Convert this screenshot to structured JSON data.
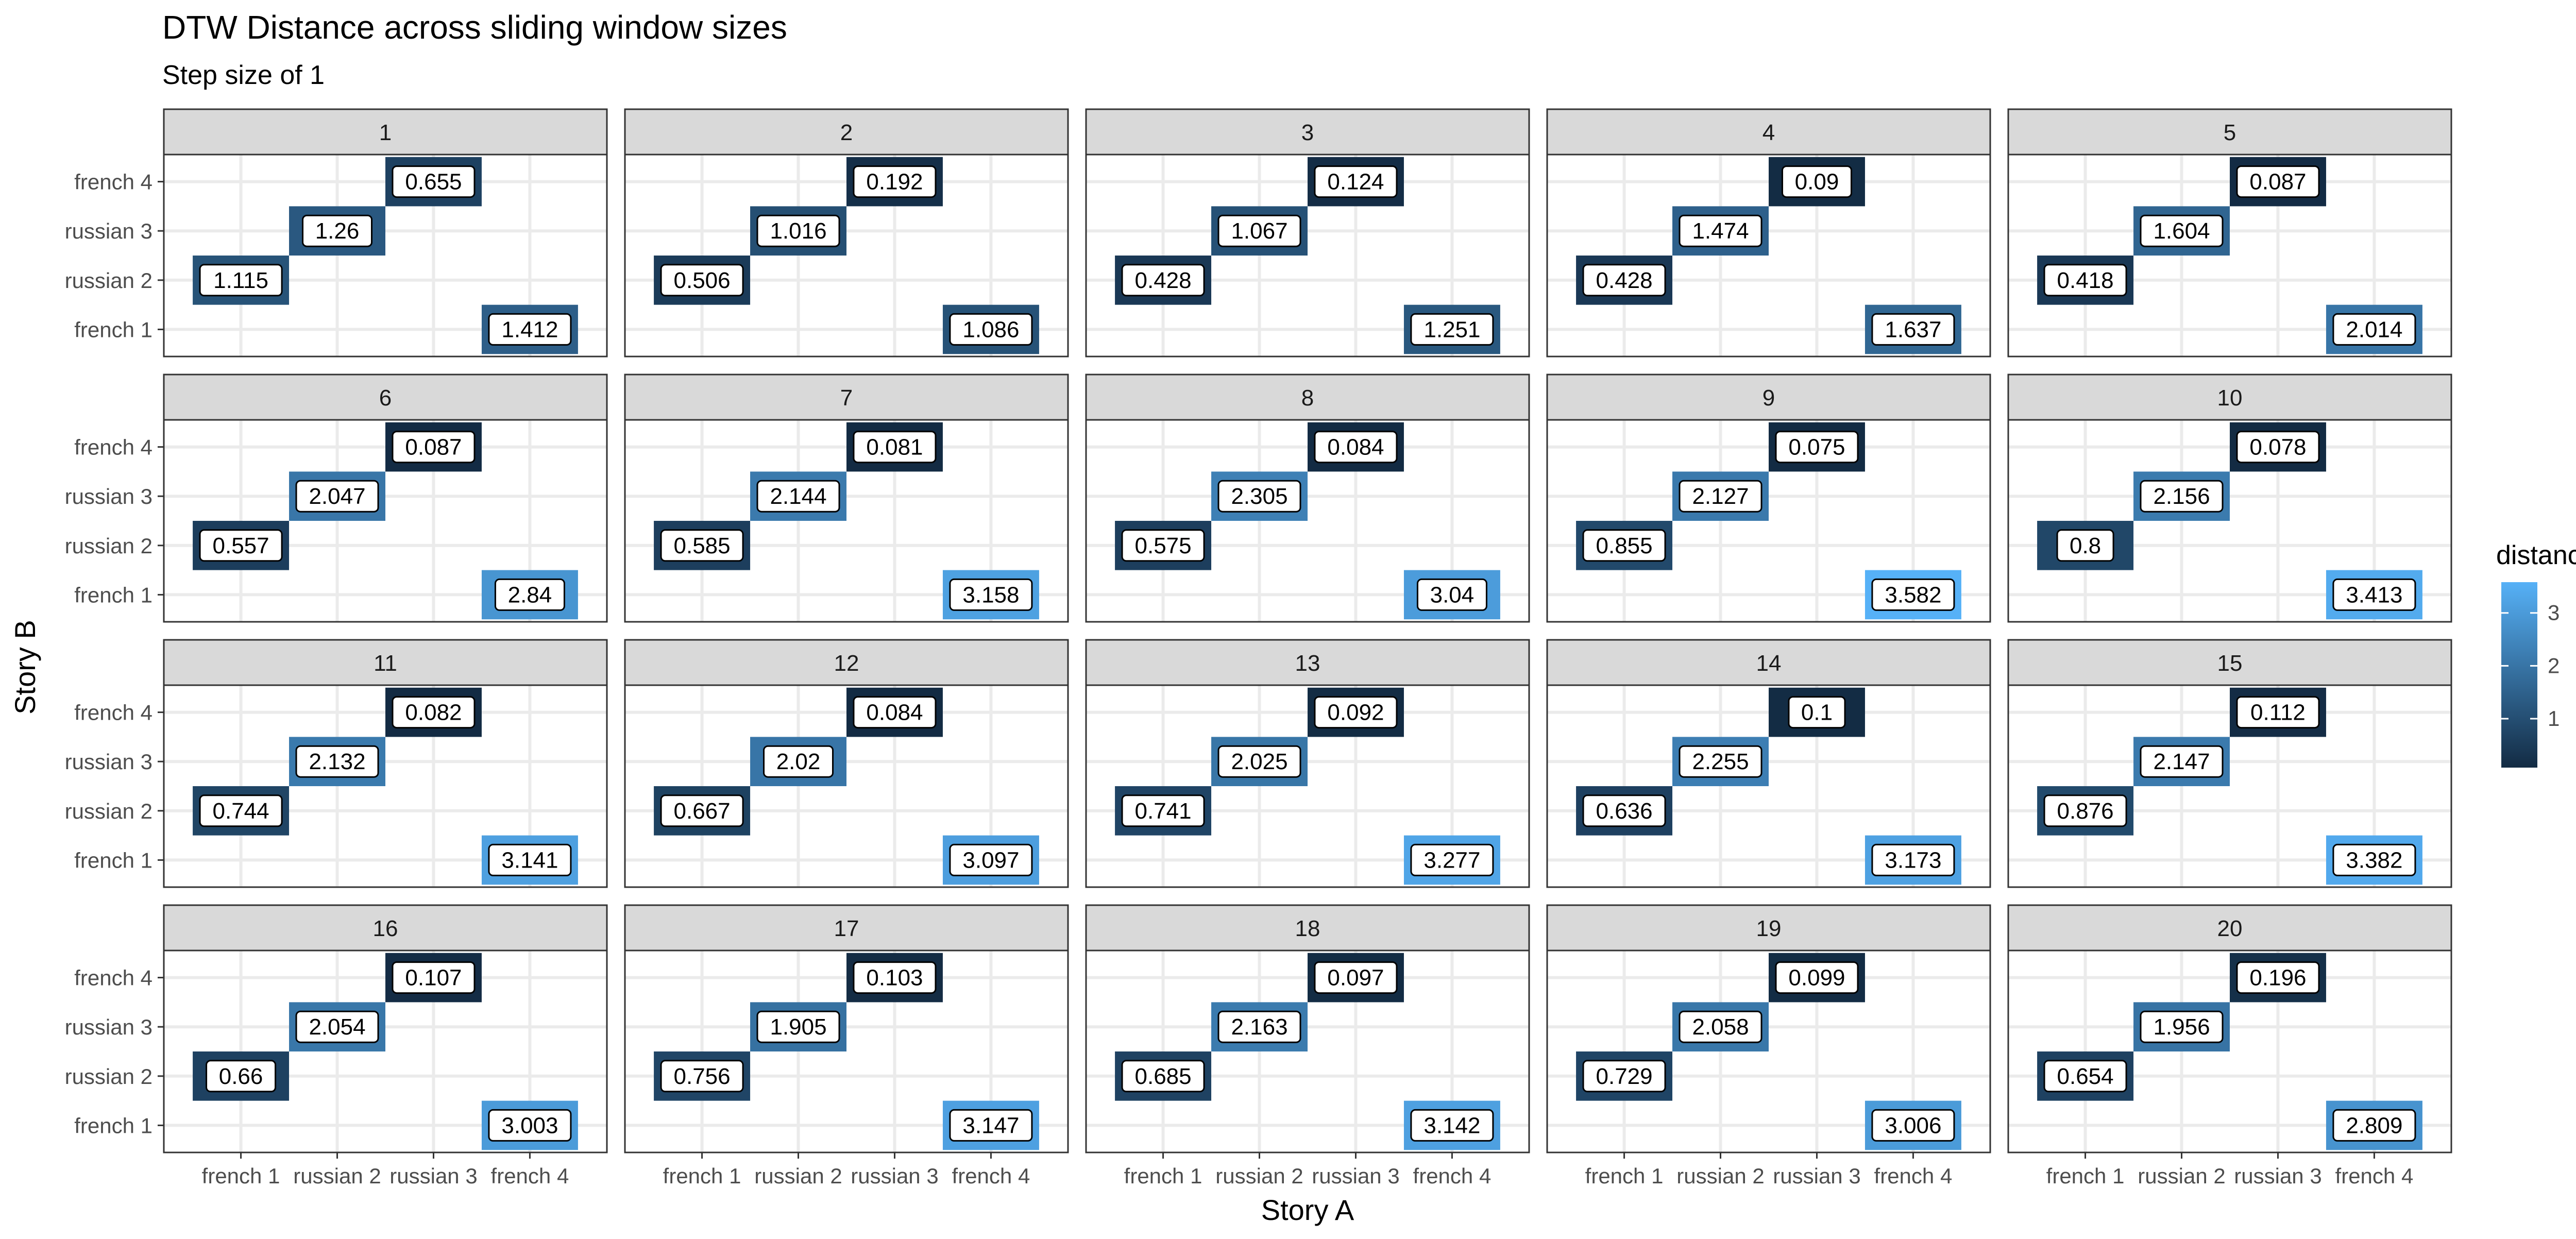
{
  "chart_data": {
    "type": "heatmap",
    "title": "DTW Distance across sliding window sizes",
    "subtitle": "Step size of 1",
    "xlabel": "Story A",
    "ylabel": "Story B",
    "x_categories": [
      "french 1",
      "russian 2",
      "russian 3",
      "french 4"
    ],
    "y_categories": [
      "french 1",
      "russian 2",
      "russian 3",
      "french 4"
    ],
    "legend": {
      "title": "distance",
      "ticks": [
        "1",
        "2",
        "3"
      ],
      "placement": "right",
      "color_low": "#132b43",
      "color_high": "#56b1f7",
      "value_range": [
        0.075,
        3.582
      ]
    },
    "facets": [
      {
        "label": "1",
        "cells": [
          {
            "x": "french 1",
            "y": "russian 2",
            "value": "1.115"
          },
          {
            "x": "russian 2",
            "y": "russian 3",
            "value": "1.26"
          },
          {
            "x": "russian 3",
            "y": "french 4",
            "value": "0.655"
          },
          {
            "x": "french 4",
            "y": "french 1",
            "value": "1.412"
          }
        ]
      },
      {
        "label": "2",
        "cells": [
          {
            "x": "french 1",
            "y": "russian 2",
            "value": "0.506"
          },
          {
            "x": "russian 2",
            "y": "russian 3",
            "value": "1.016"
          },
          {
            "x": "russian 3",
            "y": "french 4",
            "value": "0.192"
          },
          {
            "x": "french 4",
            "y": "french 1",
            "value": "1.086"
          }
        ]
      },
      {
        "label": "3",
        "cells": [
          {
            "x": "french 1",
            "y": "russian 2",
            "value": "0.428"
          },
          {
            "x": "russian 2",
            "y": "russian 3",
            "value": "1.067"
          },
          {
            "x": "russian 3",
            "y": "french 4",
            "value": "0.124"
          },
          {
            "x": "french 4",
            "y": "french 1",
            "value": "1.251"
          }
        ]
      },
      {
        "label": "4",
        "cells": [
          {
            "x": "french 1",
            "y": "russian 2",
            "value": "0.428"
          },
          {
            "x": "russian 2",
            "y": "russian 3",
            "value": "1.474"
          },
          {
            "x": "russian 3",
            "y": "french 4",
            "value": "0.09"
          },
          {
            "x": "french 4",
            "y": "french 1",
            "value": "1.637"
          }
        ]
      },
      {
        "label": "5",
        "cells": [
          {
            "x": "french 1",
            "y": "russian 2",
            "value": "0.418"
          },
          {
            "x": "russian 2",
            "y": "russian 3",
            "value": "1.604"
          },
          {
            "x": "russian 3",
            "y": "french 4",
            "value": "0.087"
          },
          {
            "x": "french 4",
            "y": "french 1",
            "value": "2.014"
          }
        ]
      },
      {
        "label": "6",
        "cells": [
          {
            "x": "french 1",
            "y": "russian 2",
            "value": "0.557"
          },
          {
            "x": "russian 2",
            "y": "russian 3",
            "value": "2.047"
          },
          {
            "x": "russian 3",
            "y": "french 4",
            "value": "0.087"
          },
          {
            "x": "french 4",
            "y": "french 1",
            "value": "2.84"
          }
        ]
      },
      {
        "label": "7",
        "cells": [
          {
            "x": "french 1",
            "y": "russian 2",
            "value": "0.585"
          },
          {
            "x": "russian 2",
            "y": "russian 3",
            "value": "2.144"
          },
          {
            "x": "russian 3",
            "y": "french 4",
            "value": "0.081"
          },
          {
            "x": "french 4",
            "y": "french 1",
            "value": "3.158"
          }
        ]
      },
      {
        "label": "8",
        "cells": [
          {
            "x": "french 1",
            "y": "russian 2",
            "value": "0.575"
          },
          {
            "x": "russian 2",
            "y": "russian 3",
            "value": "2.305"
          },
          {
            "x": "russian 3",
            "y": "french 4",
            "value": "0.084"
          },
          {
            "x": "french 4",
            "y": "french 1",
            "value": "3.04"
          }
        ]
      },
      {
        "label": "9",
        "cells": [
          {
            "x": "french 1",
            "y": "russian 2",
            "value": "0.855"
          },
          {
            "x": "russian 2",
            "y": "russian 3",
            "value": "2.127"
          },
          {
            "x": "russian 3",
            "y": "french 4",
            "value": "0.075"
          },
          {
            "x": "french 4",
            "y": "french 1",
            "value": "3.582"
          }
        ]
      },
      {
        "label": "10",
        "cells": [
          {
            "x": "french 1",
            "y": "russian 2",
            "value": "0.8"
          },
          {
            "x": "russian 2",
            "y": "russian 3",
            "value": "2.156"
          },
          {
            "x": "russian 3",
            "y": "french 4",
            "value": "0.078"
          },
          {
            "x": "french 4",
            "y": "french 1",
            "value": "3.413"
          }
        ]
      },
      {
        "label": "11",
        "cells": [
          {
            "x": "french 1",
            "y": "russian 2",
            "value": "0.744"
          },
          {
            "x": "russian 2",
            "y": "russian 3",
            "value": "2.132"
          },
          {
            "x": "russian 3",
            "y": "french 4",
            "value": "0.082"
          },
          {
            "x": "french 4",
            "y": "french 1",
            "value": "3.141"
          }
        ]
      },
      {
        "label": "12",
        "cells": [
          {
            "x": "french 1",
            "y": "russian 2",
            "value": "0.667"
          },
          {
            "x": "russian 2",
            "y": "russian 3",
            "value": "2.02"
          },
          {
            "x": "russian 3",
            "y": "french 4",
            "value": "0.084"
          },
          {
            "x": "french 4",
            "y": "french 1",
            "value": "3.097"
          }
        ]
      },
      {
        "label": "13",
        "cells": [
          {
            "x": "french 1",
            "y": "russian 2",
            "value": "0.741"
          },
          {
            "x": "russian 2",
            "y": "russian 3",
            "value": "2.025"
          },
          {
            "x": "russian 3",
            "y": "french 4",
            "value": "0.092"
          },
          {
            "x": "french 4",
            "y": "french 1",
            "value": "3.277"
          }
        ]
      },
      {
        "label": "14",
        "cells": [
          {
            "x": "french 1",
            "y": "russian 2",
            "value": "0.636"
          },
          {
            "x": "russian 2",
            "y": "russian 3",
            "value": "2.255"
          },
          {
            "x": "russian 3",
            "y": "french 4",
            "value": "0.1"
          },
          {
            "x": "french 4",
            "y": "french 1",
            "value": "3.173"
          }
        ]
      },
      {
        "label": "15",
        "cells": [
          {
            "x": "french 1",
            "y": "russian 2",
            "value": "0.876"
          },
          {
            "x": "russian 2",
            "y": "russian 3",
            "value": "2.147"
          },
          {
            "x": "russian 3",
            "y": "french 4",
            "value": "0.112"
          },
          {
            "x": "french 4",
            "y": "french 1",
            "value": "3.382"
          }
        ]
      },
      {
        "label": "16",
        "cells": [
          {
            "x": "french 1",
            "y": "russian 2",
            "value": "0.66"
          },
          {
            "x": "russian 2",
            "y": "russian 3",
            "value": "2.054"
          },
          {
            "x": "russian 3",
            "y": "french 4",
            "value": "0.107"
          },
          {
            "x": "french 4",
            "y": "french 1",
            "value": "3.003"
          }
        ]
      },
      {
        "label": "17",
        "cells": [
          {
            "x": "french 1",
            "y": "russian 2",
            "value": "0.756"
          },
          {
            "x": "russian 2",
            "y": "russian 3",
            "value": "1.905"
          },
          {
            "x": "russian 3",
            "y": "french 4",
            "value": "0.103"
          },
          {
            "x": "french 4",
            "y": "french 1",
            "value": "3.147"
          }
        ]
      },
      {
        "label": "18",
        "cells": [
          {
            "x": "french 1",
            "y": "russian 2",
            "value": "0.685"
          },
          {
            "x": "russian 2",
            "y": "russian 3",
            "value": "2.163"
          },
          {
            "x": "russian 3",
            "y": "french 4",
            "value": "0.097"
          },
          {
            "x": "french 4",
            "y": "french 1",
            "value": "3.142"
          }
        ]
      },
      {
        "label": "19",
        "cells": [
          {
            "x": "french 1",
            "y": "russian 2",
            "value": "0.729"
          },
          {
            "x": "russian 2",
            "y": "russian 3",
            "value": "2.058"
          },
          {
            "x": "russian 3",
            "y": "french 4",
            "value": "0.099"
          },
          {
            "x": "french 4",
            "y": "french 1",
            "value": "3.006"
          }
        ]
      },
      {
        "label": "20",
        "cells": [
          {
            "x": "french 1",
            "y": "russian 2",
            "value": "0.654"
          },
          {
            "x": "russian 2",
            "y": "russian 3",
            "value": "1.956"
          },
          {
            "x": "russian 3",
            "y": "french 4",
            "value": "0.196"
          },
          {
            "x": "french 4",
            "y": "french 1",
            "value": "2.809"
          }
        ]
      }
    ]
  }
}
